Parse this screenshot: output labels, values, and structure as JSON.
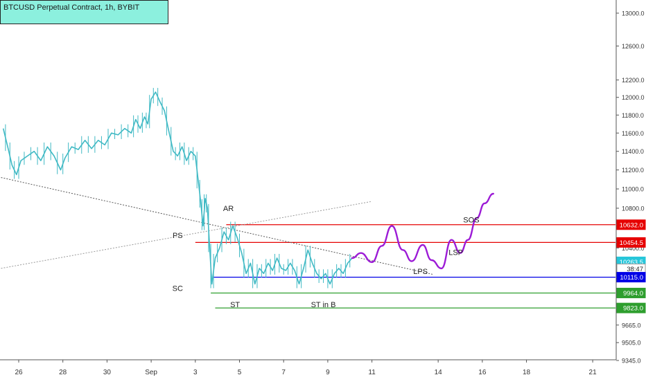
{
  "header": {
    "symbol_title": "BTCUSD Perpetual Contract, 1h, BYBIT"
  },
  "chart_data": {
    "type": "line",
    "title": "BTCUSD Perpetual Contract, 1h, BYBIT",
    "y_scale": "log",
    "ylim": [
      9345,
      13200
    ],
    "y_ticks": [
      9345.0,
      9505.0,
      9665.0,
      9823.0,
      9964.0,
      10115.0,
      10263.5,
      10400.0,
      10454.5,
      10632.0,
      10800.0,
      11000.0,
      11200.0,
      11400.0,
      11600.0,
      11800.0,
      12000.0,
      12200.0,
      12600.0,
      13000.0
    ],
    "y_tick_labels": [
      "9345.0",
      "9505.0",
      "9665.0",
      "9823.0",
      "9964.0",
      "10115.0",
      "10263.5",
      "10400.0",
      "10454.5",
      "10632.0",
      "10800.0",
      "11000.0",
      "11200.0",
      "11400.0",
      "11600.0",
      "11800.0",
      "12000.0",
      "12200.0",
      "12600.0",
      "13000.0"
    ],
    "x_ticks": [
      {
        "label": "26",
        "day": 26
      },
      {
        "label": "28",
        "day": 28
      },
      {
        "label": "30",
        "day": 30
      },
      {
        "label": "Sep",
        "day": 32
      },
      {
        "label": "3",
        "day": 34
      },
      {
        "label": "5",
        "day": 36
      },
      {
        "label": "7",
        "day": 38
      },
      {
        "label": "9",
        "day": 40
      },
      {
        "label": "11",
        "day": 42
      },
      {
        "label": "14",
        "day": 45
      },
      {
        "label": "16",
        "day": 47
      },
      {
        "label": "18",
        "day": 49
      },
      {
        "label": "21",
        "day": 52
      }
    ],
    "price_series": [
      [
        25.3,
        11650
      ],
      [
        25.5,
        11450
      ],
      [
        25.7,
        11250
      ],
      [
        25.9,
        11150
      ],
      [
        26.1,
        11300
      ],
      [
        26.4,
        11350
      ],
      [
        26.7,
        11400
      ],
      [
        27.0,
        11300
      ],
      [
        27.3,
        11450
      ],
      [
        27.6,
        11350
      ],
      [
        27.9,
        11200
      ],
      [
        28.1,
        11330
      ],
      [
        28.4,
        11450
      ],
      [
        28.7,
        11420
      ],
      [
        29.0,
        11520
      ],
      [
        29.3,
        11430
      ],
      [
        29.6,
        11520
      ],
      [
        29.9,
        11470
      ],
      [
        30.2,
        11600
      ],
      [
        30.5,
        11580
      ],
      [
        30.8,
        11650
      ],
      [
        31.1,
        11600
      ],
      [
        31.3,
        11750
      ],
      [
        31.5,
        11650
      ],
      [
        31.7,
        11780
      ],
      [
        31.85,
        11700
      ],
      [
        32.0,
        11980
      ],
      [
        32.2,
        12060
      ],
      [
        32.4,
        11950
      ],
      [
        32.6,
        11850
      ],
      [
        32.8,
        11620
      ],
      [
        33.0,
        11400
      ],
      [
        33.2,
        11350
      ],
      [
        33.4,
        11450
      ],
      [
        33.6,
        11300
      ],
      [
        33.8,
        11400
      ],
      [
        34.0,
        11350
      ],
      [
        34.15,
        11050
      ],
      [
        34.25,
        10850
      ],
      [
        34.35,
        10620
      ],
      [
        34.45,
        10900
      ],
      [
        34.55,
        10800
      ],
      [
        34.65,
        10400
      ],
      [
        34.75,
        10050
      ],
      [
        34.9,
        10300
      ],
      [
        35.1,
        10400
      ],
      [
        35.3,
        10560
      ],
      [
        35.5,
        10480
      ],
      [
        35.7,
        10620
      ],
      [
        35.9,
        10500
      ],
      [
        36.1,
        10350
      ],
      [
        36.3,
        10150
      ],
      [
        36.5,
        10250
      ],
      [
        36.7,
        10050
      ],
      [
        36.9,
        10200
      ],
      [
        37.1,
        10150
      ],
      [
        37.3,
        10250
      ],
      [
        37.5,
        10180
      ],
      [
        37.7,
        10300
      ],
      [
        37.9,
        10200
      ],
      [
        38.1,
        10180
      ],
      [
        38.3,
        10250
      ],
      [
        38.5,
        10180
      ],
      [
        38.7,
        10050
      ],
      [
        38.9,
        10200
      ],
      [
        39.1,
        10380
      ],
      [
        39.3,
        10250
      ],
      [
        39.5,
        10150
      ],
      [
        39.7,
        10100
      ],
      [
        39.9,
        10150
      ],
      [
        40.1,
        10050
      ],
      [
        40.3,
        10150
      ],
      [
        40.5,
        10200
      ],
      [
        40.7,
        10150
      ],
      [
        40.9,
        10250
      ],
      [
        41.1,
        10300
      ]
    ],
    "projection_series": [
      [
        41.1,
        10300
      ],
      [
        41.5,
        10350
      ],
      [
        42.0,
        10260
      ],
      [
        42.45,
        10420
      ],
      [
        42.9,
        10620
      ],
      [
        43.4,
        10380
      ],
      [
        43.8,
        10270
      ],
      [
        44.3,
        10430
      ],
      [
        44.7,
        10280
      ],
      [
        45.15,
        10200
      ],
      [
        45.6,
        10480
      ],
      [
        46.0,
        10350
      ],
      [
        46.35,
        10480
      ],
      [
        46.75,
        10700
      ],
      [
        47.1,
        10850
      ],
      [
        47.5,
        10950
      ]
    ],
    "wyckoff_labels": [
      {
        "text": "PS",
        "day": 33.2,
        "price": 10500
      },
      {
        "text": "AR",
        "day": 35.5,
        "price": 10770
      },
      {
        "text": "SC",
        "day": 33.2,
        "price": 9985
      },
      {
        "text": "ST",
        "day": 35.8,
        "price": 9830
      },
      {
        "text": "ST in B",
        "day": 39.8,
        "price": 9830
      },
      {
        "text": "LPS",
        "day": 44.2,
        "price": 10145
      },
      {
        "text": "LSP",
        "day": 45.8,
        "price": 10330
      },
      {
        "text": "SOS",
        "day": 46.5,
        "price": 10655
      }
    ],
    "price_badges": [
      {
        "label": "10632.0",
        "price": 10632,
        "color": "#e60000",
        "text_color": "#ffffff"
      },
      {
        "label": "10454.5",
        "price": 10454.5,
        "color": "#e60000",
        "text_color": "#ffffff"
      },
      {
        "label": "10263.5",
        "price": 10263.5,
        "color": "#26c6da",
        "text_color": "#ffffff"
      },
      {
        "label": "38:47",
        "price": 10195,
        "color": "#ffffff",
        "text_color": "#222222"
      },
      {
        "label": "10115.0",
        "price": 10115,
        "color": "#0000e6",
        "text_color": "#ffffff"
      },
      {
        "label": "9964.0",
        "price": 9964,
        "color": "#2e9e2e",
        "text_color": "#ffffff"
      },
      {
        "label": "9823.0",
        "price": 9823,
        "color": "#2e9e2e",
        "text_color": "#ffffff"
      }
    ],
    "levels": [
      {
        "price": 10632,
        "from_day": 35.4,
        "color": "#e60000"
      },
      {
        "price": 10454.5,
        "from_day": 34.0,
        "color": "#e60000"
      },
      {
        "price": 10115,
        "from_day": 34.8,
        "color": "#0000e6"
      },
      {
        "price": 9964,
        "from_day": 34.7,
        "color": "#2e9e2e"
      },
      {
        "price": 9823,
        "from_day": 34.9,
        "color": "#2e9e2e"
      }
    ],
    "trendlines": [
      {
        "from": [
          25.2,
          11120
        ],
        "to": [
          44.8,
          10140
        ],
        "color": "#555555"
      },
      {
        "from": [
          25.2,
          10200
        ],
        "to": [
          42.0,
          10870
        ],
        "color": "#999999"
      }
    ],
    "colors": {
      "candles": "#3fb9c4",
      "projection": "#9c1bd6",
      "axis_text": "#333333"
    },
    "grid": false
  }
}
